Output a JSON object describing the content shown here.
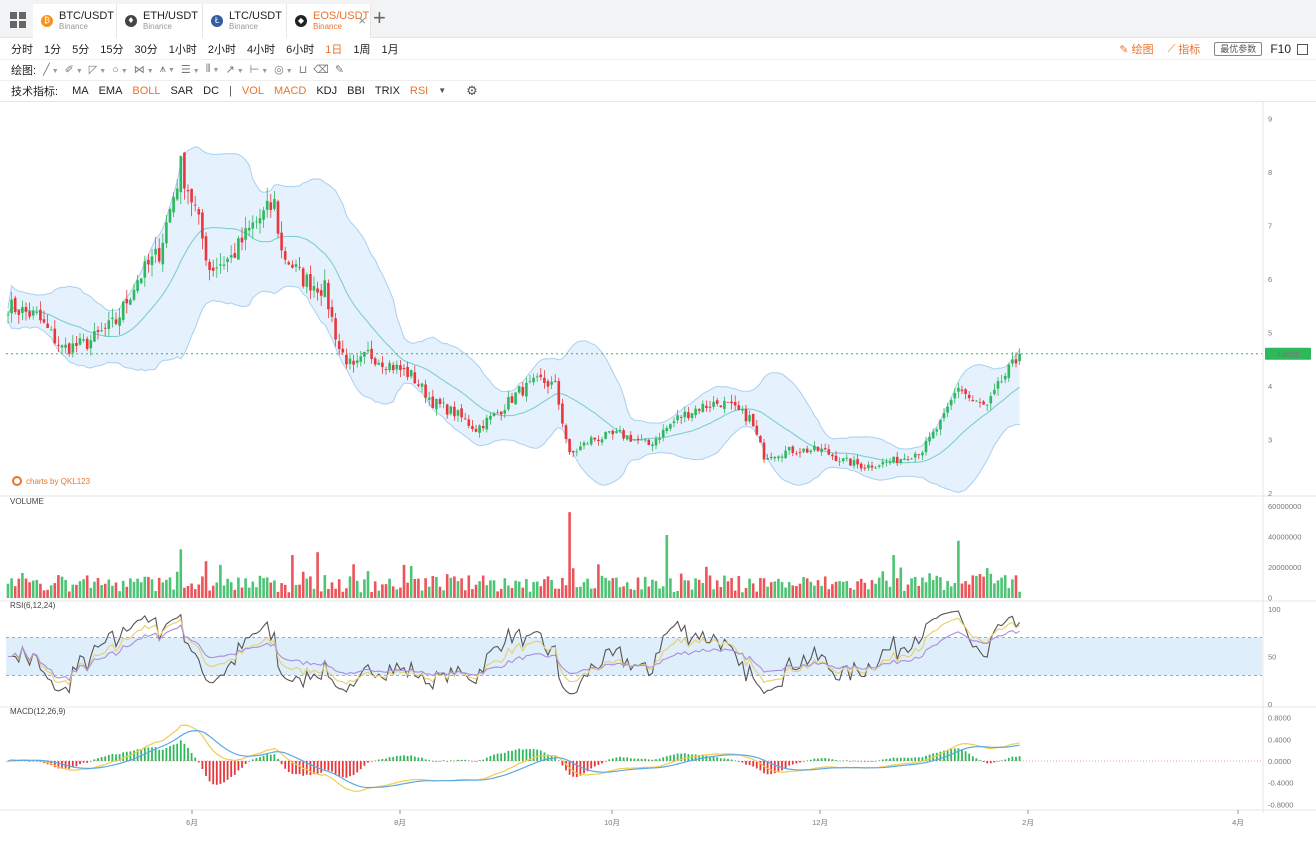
{
  "tabs": [
    {
      "symbol": "BTC/USDT",
      "exchange": "Binance",
      "coin_icon": "bitcoin-icon",
      "color": "#f7931a",
      "glyph": "₿",
      "active": false
    },
    {
      "symbol": "ETH/USDT",
      "exchange": "Binance",
      "coin_icon": "ethereum-icon",
      "color": "#444444",
      "glyph": "♦",
      "active": false
    },
    {
      "symbol": "LTC/USDT",
      "exchange": "Binance",
      "coin_icon": "litecoin-icon",
      "color": "#345d9d",
      "glyph": "Ł",
      "active": false
    },
    {
      "symbol": "EOS/USDT",
      "exchange": "Binance",
      "coin_icon": "eos-icon",
      "color": "#222222",
      "glyph": "◆",
      "active": true
    }
  ],
  "timeframes": [
    "分时",
    "1分",
    "5分",
    "15分",
    "30分",
    "1小时",
    "2小时",
    "4小时",
    "6小时",
    "1日",
    "1周",
    "1月"
  ],
  "active_timeframe": "1日",
  "right_tools": {
    "draw": "绘图",
    "indicator": "指标",
    "params": "最优参数",
    "f10": "F10"
  },
  "draw_label": "绘图:",
  "indicators_label": "技术指标:",
  "indicators": [
    {
      "label": "MA",
      "on": false
    },
    {
      "label": "EMA",
      "on": false
    },
    {
      "label": "BOLL",
      "on": true
    },
    {
      "label": "SAR",
      "on": false
    },
    {
      "label": "DC",
      "on": false
    },
    {
      "label": "|",
      "on": false
    },
    {
      "label": "VOL",
      "on": true
    },
    {
      "label": "MACD",
      "on": true
    },
    {
      "label": "KDJ",
      "on": false
    },
    {
      "label": "BBI",
      "on": false
    },
    {
      "label": "TRIX",
      "on": false
    },
    {
      "label": "RSI",
      "on": true
    }
  ],
  "credit": "charts by QKL123",
  "panes": {
    "volume": "VOLUME",
    "rsi": "RSI(6,12,24)",
    "macd": "MACD(12,26,9)"
  },
  "colors": {
    "up": "#2eb85c",
    "down": "#e8363b",
    "accent": "#e8742c",
    "band": "#dcecfb",
    "band_line": "#a9cff2",
    "mid": "#7ccfcf"
  },
  "chart_data": {
    "type": "candlestick",
    "x_ticks": [
      "6月",
      "8月",
      "10月",
      "12月",
      "2月",
      "4月"
    ],
    "price_axis": [
      2,
      3,
      4,
      5,
      6,
      7,
      8,
      9
    ],
    "last_price": "4.6009",
    "last_price_value": 4.6009,
    "close_path": [
      [
        0,
        5.5
      ],
      [
        8,
        5.3
      ],
      [
        15,
        4.7
      ],
      [
        22,
        4.8
      ],
      [
        30,
        5.2
      ],
      [
        36,
        6.0
      ],
      [
        42,
        6.5
      ],
      [
        48,
        8.1
      ],
      [
        52,
        7.3
      ],
      [
        56,
        6.2
      ],
      [
        62,
        6.4
      ],
      [
        68,
        7.0
      ],
      [
        74,
        7.4
      ],
      [
        76,
        6.5
      ],
      [
        82,
        6.0
      ],
      [
        88,
        5.8
      ],
      [
        92,
        4.7
      ],
      [
        96,
        4.3
      ],
      [
        100,
        4.6
      ],
      [
        106,
        4.4
      ],
      [
        112,
        4.2
      ],
      [
        118,
        3.7
      ],
      [
        124,
        3.5
      ],
      [
        130,
        3.2
      ],
      [
        136,
        3.5
      ],
      [
        142,
        3.9
      ],
      [
        148,
        4.1
      ],
      [
        152,
        4.0
      ],
      [
        156,
        2.7
      ],
      [
        162,
        3.0
      ],
      [
        170,
        3.1
      ],
      [
        178,
        2.9
      ],
      [
        186,
        3.4
      ],
      [
        192,
        3.6
      ],
      [
        198,
        3.7
      ],
      [
        206,
        3.4
      ],
      [
        210,
        2.7
      ],
      [
        218,
        2.8
      ],
      [
        226,
        2.8
      ],
      [
        232,
        2.6
      ],
      [
        238,
        2.5
      ],
      [
        246,
        2.6
      ],
      [
        254,
        2.8
      ],
      [
        260,
        3.4
      ],
      [
        264,
        4.0
      ],
      [
        268,
        3.7
      ],
      [
        272,
        3.6
      ],
      [
        276,
        4.1
      ],
      [
        281,
        4.55
      ]
    ],
    "volume_axis": [
      "60000000",
      "40000000",
      "20000000",
      "0"
    ],
    "rsi_axis": [
      "100",
      "50",
      "0"
    ],
    "macd_axis": [
      "0.8000",
      "0.4000",
      "0.0000",
      "-0.4000",
      "-0.8000"
    ],
    "boll": {
      "period": 20,
      "k": 2
    },
    "rsi_periods": [
      6,
      12,
      24
    ],
    "macd_params": [
      12,
      26,
      9
    ]
  }
}
